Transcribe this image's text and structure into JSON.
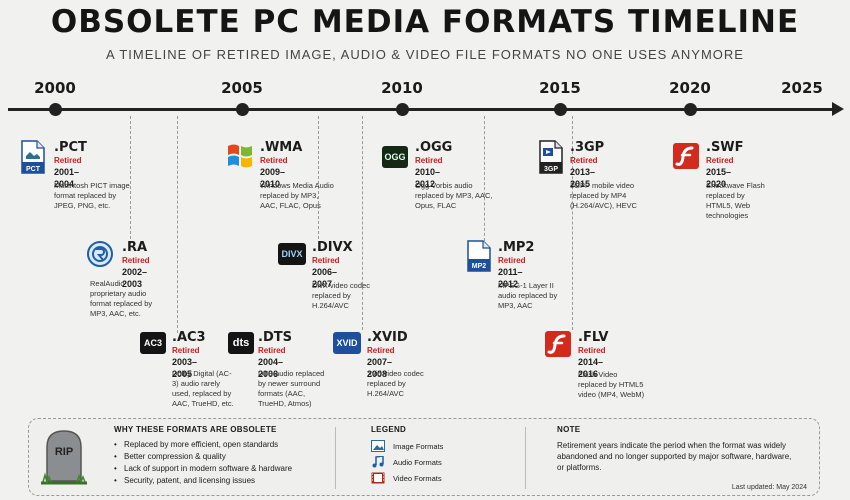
{
  "title": "OBSOLETE PC MEDIA FORMATS TIMELINE",
  "subtitle": "A TIMELINE OF RETIRED IMAGE, AUDIO & VIDEO FILE FORMATS NO ONE USES ANYMORE",
  "years": [
    "2000",
    "2005",
    "2010",
    "2015",
    "2020",
    "2025"
  ],
  "formats": [
    {
      "id": "pct",
      "ext": ".PCT",
      "icon": "PCT",
      "status": "Retired",
      "years": "2001–2004",
      "desc": "Macintosh PICT image format replaced by JPEG, PNG, etc."
    },
    {
      "id": "ra",
      "ext": ".RA",
      "icon": "realaudio-icon",
      "status": "Retired",
      "years": "2002–2003",
      "desc": "RealAudio proprietary audio format replaced by MP3, AAC, etc."
    },
    {
      "id": "ac3",
      "ext": ".AC3",
      "icon": "AC3",
      "status": "Retired",
      "years": "2003–2005",
      "desc": "Dolby Digital (AC-3) audio rarely used, replaced by AAC, TrueHD, etc."
    },
    {
      "id": "wma",
      "ext": ".WMA",
      "icon": "windows-logo-icon",
      "status": "Retired",
      "years": "2009–2010",
      "desc": "Windows Media Audio replaced by MP3, AAC, FLAC, Opus"
    },
    {
      "id": "divx",
      "ext": ".DIVX",
      "icon": "DIVX",
      "status": "Retired",
      "years": "2006–2007",
      "desc": "DivX video codec replaced by H.264/AVC"
    },
    {
      "id": "dts",
      "ext": ".DTS",
      "icon": "dts",
      "status": "Retired",
      "years": "2004–2006",
      "desc": "DTS audio replaced by newer surround formats (AAC, TrueHD, Atmos)"
    },
    {
      "id": "ogg",
      "ext": ".OGG",
      "icon": "OGG",
      "status": "Retired",
      "years": "2010–2012",
      "desc": "Ogg Vorbis audio replaced by MP3, AAC, Opus, FLAC"
    },
    {
      "id": "xvid",
      "ext": ".XVID",
      "icon": "XVID",
      "status": "Retired",
      "years": "2007–2008",
      "desc": "Xvid video codec replaced by H.264/AVC"
    },
    {
      "id": "mp2",
      "ext": ".MP2",
      "icon": "MP2",
      "status": "Retired",
      "years": "2011–2012",
      "desc": "MPEG-1 Layer II audio replaced by MP3, AAC"
    },
    {
      "id": "3gp",
      "ext": ".3GP",
      "icon": "3GP",
      "status": "Retired",
      "years": "2013–2015",
      "desc": "3GPP mobile video replaced by MP4 (H.264/AVC), HEVC"
    },
    {
      "id": "flv",
      "ext": ".FLV",
      "icon": "flash-icon",
      "status": "Retired",
      "years": "2014–2016",
      "desc": "Flash Video replaced by HTML5 video (MP4, WebM)"
    },
    {
      "id": "swf",
      "ext": ".SWF",
      "icon": "flash-icon",
      "status": "Retired",
      "years": "2015–2020",
      "desc": "Shockwave Flash replaced by HTML5, Web technologies"
    }
  ],
  "why": {
    "heading": "WHY THESE FORMATS ARE OBSOLETE",
    "tombstone": "RIP",
    "items": [
      "Replaced by more efficient, open standards",
      "Better compression & quality",
      "Lack of support in modern software & hardware",
      "Security, patent, and licensing issues"
    ]
  },
  "legend": {
    "heading": "LEGEND",
    "items": [
      {
        "label": "Image Formats",
        "icon": "image-icon",
        "color": "#2a6f97"
      },
      {
        "label": "Audio Formats",
        "icon": "music-note-icon",
        "color": "#1f5fa8"
      },
      {
        "label": "Video Formats",
        "icon": "film-icon",
        "color": "#b3261e"
      }
    ]
  },
  "note": {
    "heading": "NOTE",
    "text": "Retirement years indicate the period when the format was widely abandoned and no longer supported by major software, hardware, or platforms.",
    "updated": "Last updated: May 2024"
  },
  "colors": {
    "retired": "#c81d1d",
    "flash": "#d32a1e",
    "badge_dark": "#141414",
    "badge_blue": "#1d4f9c"
  }
}
